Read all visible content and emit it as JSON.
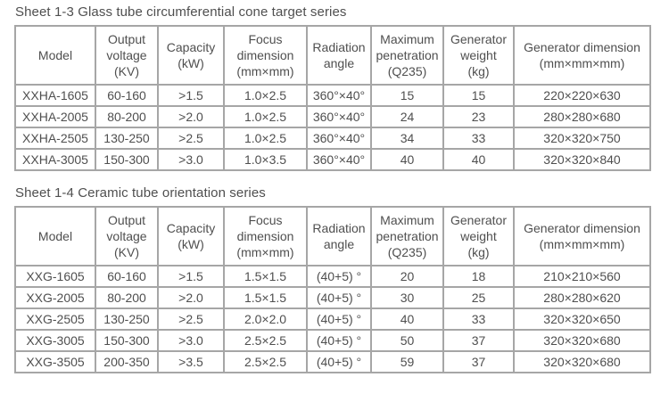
{
  "theme": {
    "background": "#ffffff",
    "text_color": "#4f4f4f",
    "border_color": "#a6a6a6"
  },
  "tables": [
    {
      "title": "Sheet 1-3 Glass tube circumferential cone target series",
      "columns": [
        "Model",
        "Output\nvoltage\n(KV)",
        "Capacity\n(kW)",
        "Focus\ndimension\n(mm×mm)",
        "Radiation\nangle",
        "Maximum\npenetration\n(Q235)",
        "Generator\nweight\n(kg)",
        "Generator dimension\n(mm×mm×mm)"
      ],
      "rows": [
        [
          "XXHA-1605",
          "60-160",
          ">1.5",
          "1.0×2.5",
          "360°×40°",
          "15",
          "15",
          "220×220×630"
        ],
        [
          "XXHA-2005",
          "80-200",
          ">2.0",
          "1.0×2.5",
          "360°×40°",
          "24",
          "23",
          "280×280×680"
        ],
        [
          "XXHA-2505",
          "130-250",
          ">2.5",
          "1.0×2.5",
          "360°×40°",
          "34",
          "33",
          "320×320×750"
        ],
        [
          "XXHA-3005",
          "150-300",
          ">3.0",
          "1.0×3.5",
          "360°×40°",
          "40",
          "40",
          "320×320×840"
        ]
      ]
    },
    {
      "title": "Sheet 1-4 Ceramic tube orientation series",
      "columns": [
        "Model",
        "Output\nvoltage\n(KV)",
        "Capacity\n(kW)",
        "Focus\ndimension\n(mm×mm)",
        "Radiation\nangle",
        "Maximum\npenetration\n(Q235)",
        "Generator\nweight\n(kg)",
        "Generator dimension\n(mm×mm×mm)"
      ],
      "rows": [
        [
          "XXG-1605",
          "60-160",
          ">1.5",
          "1.5×1.5",
          "(40+5) °",
          "20",
          "18",
          "210×210×560"
        ],
        [
          "XXG-2005",
          "80-200",
          ">2.0",
          "1.5×1.5",
          "(40+5) °",
          "30",
          "25",
          "280×280×620"
        ],
        [
          "XXG-2505",
          "130-250",
          ">2.5",
          "2.0×2.0",
          "(40+5) °",
          "40",
          "33",
          "320×320×650"
        ],
        [
          "XXG-3005",
          "150-300",
          ">3.0",
          "2.5×2.5",
          "(40+5) °",
          "50",
          "37",
          "320×320×680"
        ],
        [
          "XXG-3505",
          "200-350",
          ">3.5",
          "2.5×2.5",
          "(40+5) °",
          "59",
          "37",
          "320×320×680"
        ]
      ]
    }
  ]
}
